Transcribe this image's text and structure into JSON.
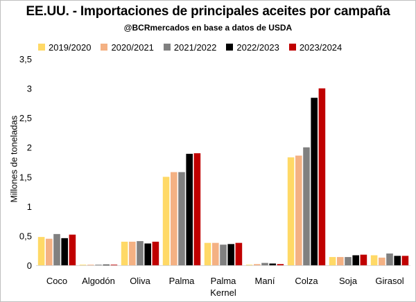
{
  "chart_data": {
    "type": "bar",
    "title": "EE.UU. - Importaciones de principales aceites por campaña",
    "subtitle": "@BCRmercados en base a datos de USDA",
    "ylabel": "Millones de toneladas",
    "xlabel": "",
    "ylim": [
      0,
      3.5
    ],
    "yticks": [
      "0",
      "0,5",
      "1",
      "1,5",
      "2",
      "2,5",
      "3",
      "3,5"
    ],
    "ytick_values": [
      0,
      0.5,
      1,
      1.5,
      2,
      2.5,
      3,
      3.5
    ],
    "grid": false,
    "legend_position": "top",
    "categories": [
      [
        "Coco"
      ],
      [
        "Algodón"
      ],
      [
        "Oliva"
      ],
      [
        "Palma"
      ],
      [
        "Palma",
        "Kernel"
      ],
      [
        "Maní"
      ],
      [
        "Colza"
      ],
      [
        "Soja"
      ],
      [
        "Girasol"
      ]
    ],
    "series": [
      {
        "name": "2019/2020",
        "color": "#FFD966",
        "values": [
          0.48,
          0.01,
          0.4,
          1.5,
          0.38,
          0.01,
          1.83,
          0.14,
          0.17
        ]
      },
      {
        "name": "2020/2021",
        "color": "#F4B183",
        "values": [
          0.45,
          0.01,
          0.4,
          1.58,
          0.38,
          0.02,
          1.86,
          0.14,
          0.13
        ]
      },
      {
        "name": "2021/2022",
        "color": "#808080",
        "values": [
          0.53,
          0.01,
          0.41,
          1.58,
          0.35,
          0.04,
          2.0,
          0.14,
          0.2
        ]
      },
      {
        "name": "2022/2023",
        "color": "#000000",
        "values": [
          0.46,
          0.01,
          0.37,
          1.89,
          0.36,
          0.03,
          2.84,
          0.17,
          0.16
        ]
      },
      {
        "name": "2023/2024",
        "color": "#C00000",
        "values": [
          0.52,
          0.01,
          0.4,
          1.9,
          0.38,
          0.02,
          3.0,
          0.18,
          0.16
        ]
      }
    ]
  }
}
